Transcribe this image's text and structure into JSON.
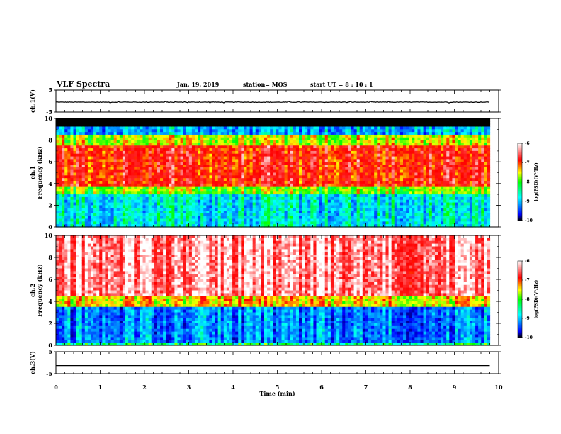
{
  "header": {
    "title": "VLF Spectra",
    "date": "Jan. 19, 2019",
    "station": "station= MOS",
    "start": "start  UT =   8 : 10 : 1"
  },
  "chart_data": [
    {
      "type": "line",
      "panel": "ch1-waveform",
      "ylabel": "ch.1(V)",
      "ylim": [
        -5,
        5
      ],
      "yticks": [
        "5",
        "-5"
      ],
      "xlim": [
        0,
        10
      ],
      "series": [
        {
          "x": [
            0,
            9.8
          ],
          "values": [
            -0.5,
            -0.5
          ]
        }
      ]
    },
    {
      "type": "heatmap",
      "panel": "ch1-spectrogram",
      "ylabel_lines": [
        "ch.1",
        "Frequency (kHz)"
      ],
      "ylim": [
        0,
        10
      ],
      "yticks": [
        "0",
        "2",
        "4",
        "6",
        "8",
        "10"
      ],
      "xlim": [
        0,
        10
      ],
      "data_xlim": [
        0,
        9.8
      ],
      "bands": [
        {
          "from": 0,
          "to": 3,
          "level": -9.0
        },
        {
          "from": 3,
          "to": 3.8,
          "level": -8.0
        },
        {
          "from": 3.8,
          "to": 7.5,
          "level": -6.9
        },
        {
          "from": 7.5,
          "to": 8.6,
          "level": -7.8
        },
        {
          "from": 8.6,
          "to": 9.3,
          "level": -9.3
        },
        {
          "from": 9.3,
          "to": 10,
          "level": -11
        }
      ],
      "colorbar": {
        "label": "log(PSD)(V²/Hz)",
        "ticks": [
          "-6",
          "-7",
          "-8",
          "-9",
          "-10"
        ],
        "range": [
          -10,
          -6
        ]
      }
    },
    {
      "type": "heatmap",
      "panel": "ch2-spectrogram",
      "ylabel_lines": [
        "ch.2",
        "Frequency (kHz)"
      ],
      "ylim": [
        0,
        10
      ],
      "yticks": [
        "0",
        "2",
        "4",
        "6",
        "8",
        "10"
      ],
      "xlim": [
        0,
        10
      ],
      "data_xlim": [
        0,
        9.8
      ],
      "bands": [
        {
          "from": 0,
          "to": 0.3,
          "level": -8.6
        },
        {
          "from": 0.3,
          "to": 3.4,
          "level": -9.5
        },
        {
          "from": 3.4,
          "to": 4.4,
          "level": -7.6
        },
        {
          "from": 4.4,
          "to": 10,
          "level": -6.3
        }
      ],
      "colorbar": {
        "label": "log(PSD)(V²/Hz)",
        "ticks": [
          "-6",
          "-7",
          "-8",
          "-9",
          "-10"
        ],
        "range": [
          -10,
          -6
        ]
      }
    },
    {
      "type": "line",
      "panel": "ch3-waveform",
      "ylabel": "ch.3(V)",
      "ylim": [
        -5,
        5
      ],
      "yticks": [
        "5",
        "-5"
      ],
      "xlim": [
        0,
        10
      ],
      "xticks": [
        "0",
        "1",
        "2",
        "3",
        "4",
        "5",
        "6",
        "7",
        "8",
        "9",
        "10"
      ],
      "xlabel": "Time (min)",
      "series": [
        {
          "x": [
            0,
            9.8
          ],
          "values": [
            -1.3,
            -1.3
          ]
        }
      ]
    }
  ]
}
